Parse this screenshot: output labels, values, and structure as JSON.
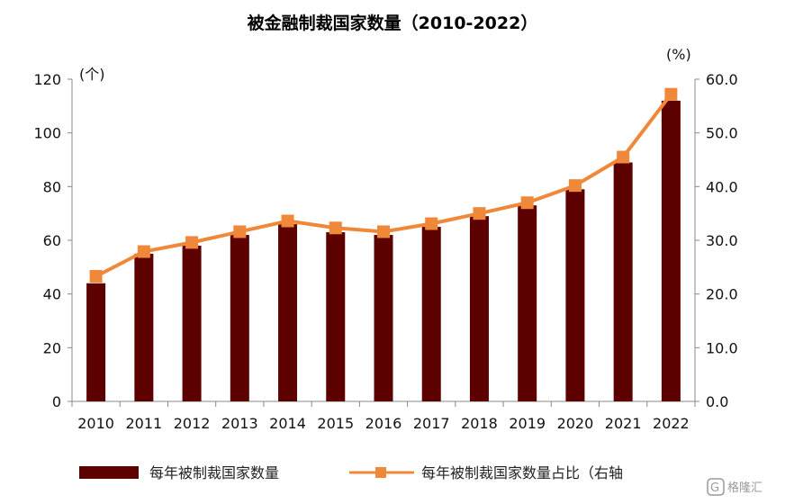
{
  "chart_data": {
    "type": "bar",
    "title": "被金融制裁国家数量（2010-2022）",
    "categories": [
      "2010",
      "2011",
      "2012",
      "2013",
      "2014",
      "2015",
      "2016",
      "2017",
      "2018",
      "2019",
      "2020",
      "2021",
      "2022"
    ],
    "series": [
      {
        "name": "每年被制裁国家数量",
        "type": "bar",
        "axis": "left",
        "color": "#5c0000",
        "values": [
          44,
          55,
          58,
          62,
          66,
          63,
          62,
          65,
          69,
          73,
          79,
          89,
          112
        ]
      },
      {
        "name": "每年被制裁国家数量占比（右轴",
        "type": "line",
        "axis": "right",
        "color": "#f0883a",
        "values": [
          23.3,
          27.9,
          29.6,
          31.6,
          33.6,
          32.3,
          31.6,
          33.1,
          35.0,
          37.0,
          40.2,
          45.5,
          57.2
        ]
      }
    ],
    "y_left": {
      "unit_label": "(个)",
      "ylim": [
        0,
        120
      ],
      "ticks": [
        "0",
        "20",
        "40",
        "60",
        "80",
        "100",
        "120"
      ]
    },
    "y_right": {
      "unit_label": "(%)",
      "ylim": [
        0,
        60
      ],
      "ticks": [
        "0.0",
        "10.0",
        "20.0",
        "30.0",
        "40.0",
        "50.0",
        "60.0"
      ]
    },
    "grid": false,
    "legend_position": "bottom"
  },
  "watermark": {
    "text": "格隆汇"
  }
}
